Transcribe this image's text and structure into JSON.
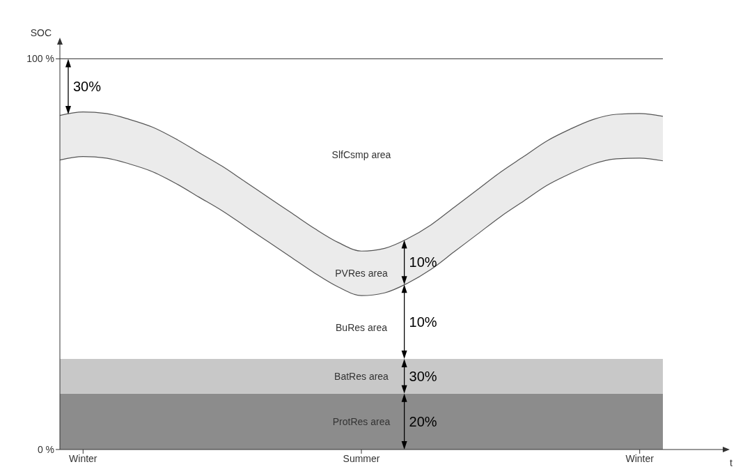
{
  "chart_data": {
    "type": "area",
    "ylabel": "SOC",
    "ylim": [
      0,
      104
    ],
    "yticks": [
      {
        "value": 0,
        "label": "0 %"
      },
      {
        "value": 100,
        "label": "100 %"
      }
    ],
    "categories": [
      null,
      "Winter",
      null,
      null,
      null,
      null,
      null,
      null,
      null,
      null,
      null,
      null,
      null,
      "Summer",
      null,
      null,
      null,
      null,
      null,
      null,
      null,
      null,
      null,
      null,
      null,
      "Winter",
      null
    ],
    "series": [
      {
        "color": "#ebebeb",
        "values": [
          85.5,
          86.4,
          86.0,
          84.5,
          82.5,
          79.5,
          76.0,
          72.5,
          68.5,
          64.5,
          60.5,
          56.5,
          53.0,
          50.8,
          51.5,
          54.0,
          57.5,
          62.0,
          66.5,
          71.0,
          75.0,
          79.0,
          82.0,
          84.5,
          85.8,
          86.0,
          85.3
        ]
      },
      {
        "color": "#ffffff",
        "values": [
          74.1,
          75.0,
          74.6,
          73.1,
          71.1,
          68.1,
          64.6,
          61.1,
          57.1,
          53.1,
          49.1,
          45.1,
          41.6,
          39.4,
          40.1,
          42.6,
          46.1,
          50.6,
          55.1,
          59.6,
          63.6,
          67.6,
          70.6,
          73.1,
          74.4,
          74.6,
          73.9
        ]
      }
    ],
    "bands": [
      {
        "axis": "y",
        "from": 0,
        "to": 14.3,
        "label": "ProtRes area",
        "color": "#8c8c8c"
      },
      {
        "axis": "y",
        "from": 14.3,
        "to": 23.2,
        "label": "BatRes area",
        "color": "#c8c8c8"
      }
    ],
    "ref_lines": [
      {
        "axis": "y",
        "value": 100,
        "color": "#555555"
      }
    ],
    "annotations": [
      "t",
      "BuRes area",
      "PVRes area",
      "SlfCsmp area",
      "20%",
      "30%",
      "10%",
      "10%",
      "30%"
    ]
  }
}
